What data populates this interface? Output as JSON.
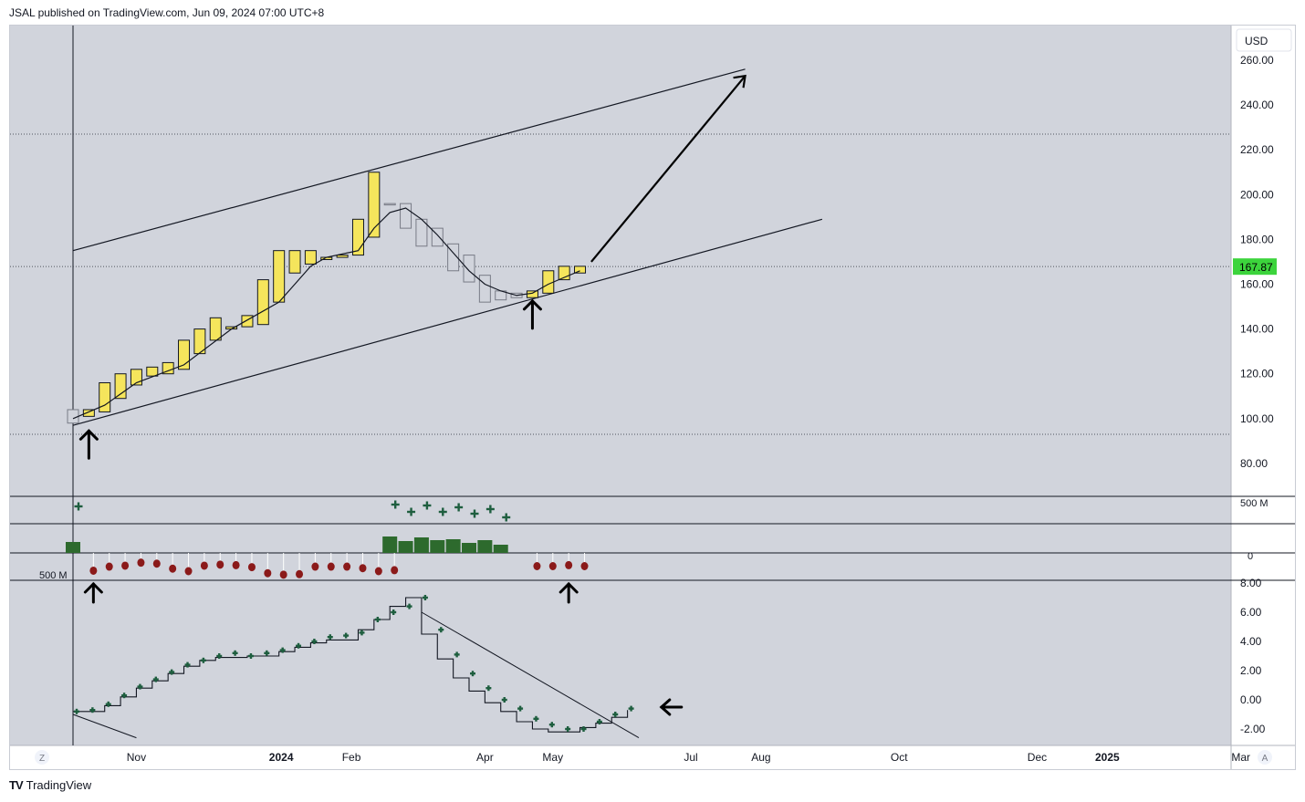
{
  "header": {
    "published_by": "JSAL published on TradingView.com, Jun 09, 2024 07:00 UTC+8"
  },
  "footer": {
    "brand": "TradingView",
    "logo_mark": "TV"
  },
  "colors": {
    "plot_bg": "#d1d4dc",
    "axis_bg": "#ffffff",
    "bull_fill": "#f5e55c",
    "bear_fill": "#d1d4dc",
    "candle_border": "#131722",
    "hollow_border": "#787b86",
    "green": "#1e5e3f",
    "dark_green_bar": "#2d6a2d",
    "red_dot": "#8b1a1a",
    "price_badge": "#3cd43c"
  },
  "chart_data": [
    {
      "type": "candlestick",
      "name": "price-pane",
      "currency": "USD",
      "price_badge": "167.87",
      "ylim": [
        72,
        266
      ],
      "yticks": [
        "260.00",
        "240.00",
        "220.00",
        "200.00",
        "180.00",
        "160.00",
        "140.00",
        "120.00",
        "100.00",
        "80.00"
      ],
      "ytick_values": [
        260,
        240,
        220,
        200,
        180,
        160,
        140,
        120,
        100,
        80
      ],
      "xticks": [
        {
          "label": "Z",
          "d": -45
        },
        {
          "label": "Nov",
          "d": 28
        },
        {
          "label": "2024",
          "d": 92,
          "bold": true
        },
        {
          "label": "Feb",
          "d": 123
        },
        {
          "label": "Apr",
          "d": 182
        },
        {
          "label": "May",
          "d": 212
        },
        {
          "label": "Jul",
          "d": 273
        },
        {
          "label": "Aug",
          "d": 304
        },
        {
          "label": "Oct",
          "d": 365
        },
        {
          "label": "Dec",
          "d": 426
        },
        {
          "label": "2025",
          "d": 457,
          "bold": true
        },
        {
          "label": "Mar",
          "d": 516
        },
        {
          "label": "A",
          "d": 542
        }
      ],
      "candles": [
        {
          "d": 0,
          "o": 104,
          "c": 98,
          "bull": false
        },
        {
          "d": 7,
          "o": 101,
          "c": 104,
          "bull": true
        },
        {
          "d": 14,
          "o": 103,
          "c": 116,
          "bull": true
        },
        {
          "d": 21,
          "o": 109,
          "c": 120,
          "bull": true
        },
        {
          "d": 28,
          "o": 115,
          "c": 122,
          "bull": true
        },
        {
          "d": 35,
          "o": 119,
          "c": 123,
          "bull": true
        },
        {
          "d": 42,
          "o": 120,
          "c": 125,
          "bull": true
        },
        {
          "d": 49,
          "o": 122,
          "c": 135,
          "bull": true
        },
        {
          "d": 56,
          "o": 129,
          "c": 140,
          "bull": true
        },
        {
          "d": 63,
          "o": 135,
          "c": 145,
          "bull": true
        },
        {
          "d": 70,
          "o": 140,
          "c": 141,
          "bull": true
        },
        {
          "d": 77,
          "o": 141,
          "c": 146,
          "bull": true
        },
        {
          "d": 84,
          "o": 142,
          "c": 162,
          "bull": true
        },
        {
          "d": 91,
          "o": 152,
          "c": 175,
          "bull": true
        },
        {
          "d": 98,
          "o": 165,
          "c": 175,
          "bull": true
        },
        {
          "d": 105,
          "o": 169,
          "c": 175,
          "bull": true
        },
        {
          "d": 112,
          "o": 171,
          "c": 172,
          "bull": true
        },
        {
          "d": 119,
          "o": 172,
          "c": 173,
          "bull": true
        },
        {
          "d": 126,
          "o": 173,
          "c": 189,
          "bull": true
        },
        {
          "d": 133,
          "o": 181,
          "c": 210,
          "bull": true
        },
        {
          "d": 140,
          "o": 196,
          "c": 196,
          "bull": false
        },
        {
          "d": 147,
          "o": 196,
          "c": 185,
          "bull": false
        },
        {
          "d": 154,
          "o": 189,
          "c": 177,
          "bull": false
        },
        {
          "d": 161,
          "o": 185,
          "c": 177,
          "bull": false
        },
        {
          "d": 168,
          "o": 178,
          "c": 166,
          "bull": false
        },
        {
          "d": 175,
          "o": 173,
          "c": 161,
          "bull": false
        },
        {
          "d": 182,
          "o": 164,
          "c": 152,
          "bull": false
        },
        {
          "d": 189,
          "o": 157,
          "c": 153,
          "bull": false
        },
        {
          "d": 196,
          "o": 156,
          "c": 154,
          "bull": false
        },
        {
          "d": 203,
          "o": 154,
          "c": 157,
          "bull": true
        },
        {
          "d": 210,
          "o": 156,
          "c": 166,
          "bull": true
        },
        {
          "d": 217,
          "o": 162,
          "c": 168,
          "bull": true
        },
        {
          "d": 224,
          "o": 165,
          "c": 168,
          "bull": true
        }
      ],
      "moving_average": [
        {
          "d": 0,
          "v": 100
        },
        {
          "d": 14,
          "v": 106
        },
        {
          "d": 28,
          "v": 116
        },
        {
          "d": 49,
          "v": 124
        },
        {
          "d": 70,
          "v": 140
        },
        {
          "d": 91,
          "v": 152
        },
        {
          "d": 98,
          "v": 160
        },
        {
          "d": 105,
          "v": 168
        },
        {
          "d": 112,
          "v": 172
        },
        {
          "d": 126,
          "v": 175
        },
        {
          "d": 133,
          "v": 185
        },
        {
          "d": 140,
          "v": 192
        },
        {
          "d": 147,
          "v": 194
        },
        {
          "d": 154,
          "v": 189
        },
        {
          "d": 161,
          "v": 182
        },
        {
          "d": 168,
          "v": 174
        },
        {
          "d": 175,
          "v": 166
        },
        {
          "d": 182,
          "v": 160
        },
        {
          "d": 189,
          "v": 157
        },
        {
          "d": 196,
          "v": 155
        },
        {
          "d": 203,
          "v": 156
        },
        {
          "d": 210,
          "v": 160
        },
        {
          "d": 217,
          "v": 163
        },
        {
          "d": 224,
          "v": 166
        }
      ],
      "dotted_levels": [
        227,
        167.87,
        93
      ],
      "trendlines": [
        {
          "d1": 0,
          "v1": 175,
          "d2": 297,
          "v2": 256
        },
        {
          "d1": 0,
          "v1": 97,
          "d2": 331,
          "v2": 189
        }
      ],
      "projection_arrow": {
        "d1": 229,
        "v1": 170,
        "d2": 297,
        "v2": 253
      },
      "up_arrows": [
        {
          "d": 7,
          "v": 88
        },
        {
          "d": 203,
          "v": 146
        }
      ]
    },
    {
      "type": "bar",
      "name": "volume-delta-pane",
      "label_top": "500 M",
      "label_left": "500 M",
      "zero_label": "0",
      "plus_marks": [
        {
          "d": 0,
          "r": 0.85
        },
        {
          "d": 140,
          "r": 0.95
        },
        {
          "d": 147,
          "r": 0.55
        },
        {
          "d": 154,
          "r": 0.9
        },
        {
          "d": 161,
          "r": 0.55
        },
        {
          "d": 168,
          "r": 0.8
        },
        {
          "d": 175,
          "r": 0.45
        },
        {
          "d": 182,
          "r": 0.7
        },
        {
          "d": 189,
          "r": 0.25
        }
      ],
      "green_bars": [
        {
          "d": 0,
          "v": 12
        },
        {
          "d": 140,
          "v": 18
        },
        {
          "d": 147,
          "v": 13
        },
        {
          "d": 154,
          "v": 17
        },
        {
          "d": 161,
          "v": 14
        },
        {
          "d": 168,
          "v": 15
        },
        {
          "d": 175,
          "v": 11
        },
        {
          "d": 182,
          "v": 14
        },
        {
          "d": 189,
          "v": 9
        }
      ],
      "red_dots": [
        {
          "d": 7,
          "v": 19
        },
        {
          "d": 14,
          "v": 11
        },
        {
          "d": 21,
          "v": 9
        },
        {
          "d": 28,
          "v": 3
        },
        {
          "d": 35,
          "v": 5
        },
        {
          "d": 42,
          "v": 15
        },
        {
          "d": 49,
          "v": 20
        },
        {
          "d": 56,
          "v": 9
        },
        {
          "d": 63,
          "v": 7
        },
        {
          "d": 70,
          "v": 8
        },
        {
          "d": 77,
          "v": 12
        },
        {
          "d": 84,
          "v": 24
        },
        {
          "d": 91,
          "v": 27
        },
        {
          "d": 98,
          "v": 26
        },
        {
          "d": 105,
          "v": 11
        },
        {
          "d": 112,
          "v": 11
        },
        {
          "d": 119,
          "v": 11
        },
        {
          "d": 126,
          "v": 14
        },
        {
          "d": 133,
          "v": 20
        },
        {
          "d": 140,
          "v": 18
        },
        {
          "d": 203,
          "v": 10
        },
        {
          "d": 210,
          "v": 10
        },
        {
          "d": 217,
          "v": 8
        },
        {
          "d": 224,
          "v": 10
        }
      ],
      "up_arrows": [
        {
          "d": 7
        },
        {
          "d": 217
        }
      ]
    },
    {
      "type": "line",
      "name": "oscillator-pane",
      "ylim": [
        -3.1,
        8.1
      ],
      "yticks": [
        "8.00",
        "6.00",
        "4.00",
        "2.00",
        "0.00",
        "-2.00"
      ],
      "ytick_values": [
        8,
        6,
        4,
        2,
        0,
        -2
      ],
      "plus_points": [
        {
          "d": 0,
          "v": -0.8
        },
        {
          "d": 7,
          "v": -0.7
        },
        {
          "d": 14,
          "v": -0.3
        },
        {
          "d": 21,
          "v": 0.3
        },
        {
          "d": 28,
          "v": 0.9
        },
        {
          "d": 35,
          "v": 1.4
        },
        {
          "d": 42,
          "v": 1.9
        },
        {
          "d": 49,
          "v": 2.4
        },
        {
          "d": 56,
          "v": 2.7
        },
        {
          "d": 63,
          "v": 3.0
        },
        {
          "d": 70,
          "v": 3.2
        },
        {
          "d": 77,
          "v": 3.0
        },
        {
          "d": 84,
          "v": 3.2
        },
        {
          "d": 91,
          "v": 3.4
        },
        {
          "d": 98,
          "v": 3.7
        },
        {
          "d": 105,
          "v": 4.0
        },
        {
          "d": 112,
          "v": 4.3
        },
        {
          "d": 119,
          "v": 4.4
        },
        {
          "d": 126,
          "v": 4.6
        },
        {
          "d": 133,
          "v": 5.5
        },
        {
          "d": 140,
          "v": 6.0
        },
        {
          "d": 147,
          "v": 6.4
        },
        {
          "d": 154,
          "v": 7.0
        },
        {
          "d": 161,
          "v": 4.8
        },
        {
          "d": 168,
          "v": 3.1
        },
        {
          "d": 175,
          "v": 1.8
        },
        {
          "d": 182,
          "v": 0.8
        },
        {
          "d": 189,
          "v": 0.0
        },
        {
          "d": 196,
          "v": -0.6
        },
        {
          "d": 203,
          "v": -1.3
        },
        {
          "d": 210,
          "v": -1.7
        },
        {
          "d": 217,
          "v": -2.0
        },
        {
          "d": 224,
          "v": -2.0
        },
        {
          "d": 231,
          "v": -1.5
        },
        {
          "d": 238,
          "v": -1.0
        },
        {
          "d": 245,
          "v": -0.6
        }
      ],
      "step_line": [
        {
          "d": 0,
          "v": -0.8
        },
        {
          "d": 14,
          "v": -0.8
        },
        {
          "d": 14,
          "v": -0.4
        },
        {
          "d": 21,
          "v": -0.4
        },
        {
          "d": 21,
          "v": 0.2
        },
        {
          "d": 28,
          "v": 0.2
        },
        {
          "d": 28,
          "v": 0.8
        },
        {
          "d": 35,
          "v": 0.8
        },
        {
          "d": 35,
          "v": 1.3
        },
        {
          "d": 42,
          "v": 1.3
        },
        {
          "d": 42,
          "v": 1.8
        },
        {
          "d": 49,
          "v": 1.8
        },
        {
          "d": 49,
          "v": 2.3
        },
        {
          "d": 56,
          "v": 2.3
        },
        {
          "d": 56,
          "v": 2.7
        },
        {
          "d": 63,
          "v": 2.7
        },
        {
          "d": 63,
          "v": 2.9
        },
        {
          "d": 77,
          "v": 2.9
        },
        {
          "d": 77,
          "v": 3.0
        },
        {
          "d": 91,
          "v": 3.0
        },
        {
          "d": 91,
          "v": 3.3
        },
        {
          "d": 98,
          "v": 3.3
        },
        {
          "d": 98,
          "v": 3.6
        },
        {
          "d": 105,
          "v": 3.6
        },
        {
          "d": 105,
          "v": 3.9
        },
        {
          "d": 112,
          "v": 3.9
        },
        {
          "d": 112,
          "v": 4.1
        },
        {
          "d": 126,
          "v": 4.1
        },
        {
          "d": 126,
          "v": 4.8
        },
        {
          "d": 133,
          "v": 4.8
        },
        {
          "d": 133,
          "v": 5.5
        },
        {
          "d": 140,
          "v": 5.5
        },
        {
          "d": 140,
          "v": 6.4
        },
        {
          "d": 147,
          "v": 6.4
        },
        {
          "d": 147,
          "v": 7.0
        },
        {
          "d": 154,
          "v": 7.0
        },
        {
          "d": 154,
          "v": 4.5
        },
        {
          "d": 161,
          "v": 4.5
        },
        {
          "d": 161,
          "v": 2.8
        },
        {
          "d": 168,
          "v": 2.8
        },
        {
          "d": 168,
          "v": 1.5
        },
        {
          "d": 175,
          "v": 1.5
        },
        {
          "d": 175,
          "v": 0.6
        },
        {
          "d": 182,
          "v": 0.6
        },
        {
          "d": 182,
          "v": -0.2
        },
        {
          "d": 189,
          "v": -0.2
        },
        {
          "d": 189,
          "v": -0.8
        },
        {
          "d": 196,
          "v": -0.8
        },
        {
          "d": 196,
          "v": -1.5
        },
        {
          "d": 203,
          "v": -1.5
        },
        {
          "d": 203,
          "v": -2.0
        },
        {
          "d": 210,
          "v": -2.0
        },
        {
          "d": 210,
          "v": -2.2
        },
        {
          "d": 224,
          "v": -2.2
        },
        {
          "d": 224,
          "v": -1.9
        },
        {
          "d": 231,
          "v": -1.9
        },
        {
          "d": 231,
          "v": -1.6
        },
        {
          "d": 238,
          "v": -1.6
        },
        {
          "d": 238,
          "v": -1.2
        },
        {
          "d": 245,
          "v": -1.2
        },
        {
          "d": 245,
          "v": -0.7
        }
      ],
      "trendlines": [
        {
          "d1": 0,
          "v1": -1.0,
          "d2": 28,
          "v2": -2.6
        },
        {
          "d1": 154,
          "v1": 6.0,
          "d2": 250,
          "v2": -2.6
        }
      ],
      "left_arrow": {
        "d": 260,
        "v": -0.5
      }
    }
  ]
}
